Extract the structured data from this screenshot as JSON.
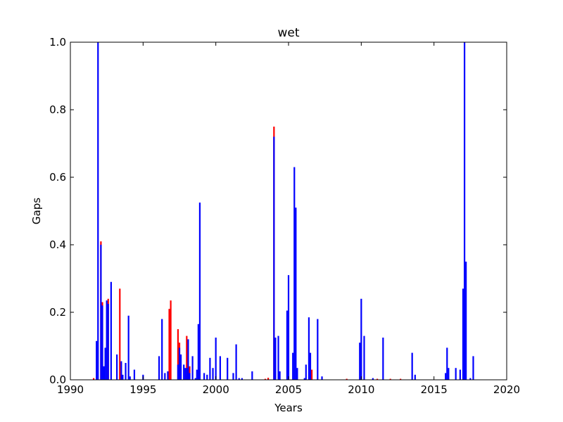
{
  "chart_data": {
    "type": "bar",
    "title": "wet",
    "xlabel": "Years",
    "ylabel": "Gaps",
    "xlim": [
      1990,
      2020
    ],
    "ylim": [
      0.0,
      1.0
    ],
    "xticks": [
      "1990",
      "1995",
      "2000",
      "2005",
      "2010",
      "2015",
      "2020"
    ],
    "yticks": [
      "0.0",
      "0.2",
      "0.4",
      "0.6",
      "0.8",
      "1.0"
    ],
    "grid": false,
    "colors": {
      "blue": "#0000ff",
      "red": "#ff0000"
    },
    "series": [
      {
        "color": "red",
        "points": [
          [
            1991.6,
            0.005
          ],
          [
            1992.1,
            0.41
          ],
          [
            1992.2,
            0.23
          ],
          [
            1992.6,
            0.24
          ],
          [
            1993.4,
            0.27
          ],
          [
            1993.5,
            0.05
          ],
          [
            1996.8,
            0.21
          ],
          [
            1996.9,
            0.235
          ],
          [
            1997.4,
            0.15
          ],
          [
            1997.5,
            0.11
          ],
          [
            1998.0,
            0.13
          ],
          [
            1998.2,
            0.04
          ],
          [
            2003.4,
            0.003
          ],
          [
            2003.6,
            0.006
          ],
          [
            2004.0,
            0.75
          ],
          [
            2006.6,
            0.03
          ],
          [
            2009.0,
            0.003
          ],
          [
            2011.1,
            0.003
          ],
          [
            2012.0,
            0.003
          ],
          [
            2012.7,
            0.003
          ],
          [
            2016.0,
            0.003
          ],
          [
            2016.8,
            0.003
          ]
        ]
      },
      {
        "color": "blue",
        "points": [
          [
            1991.8,
            0.115
          ],
          [
            1991.9,
            1.0
          ],
          [
            1992.1,
            0.4
          ],
          [
            1992.2,
            0.22
          ],
          [
            1992.3,
            0.04
          ],
          [
            1992.4,
            0.095
          ],
          [
            1992.5,
            0.235
          ],
          [
            1992.6,
            0.225
          ],
          [
            1992.8,
            0.29
          ],
          [
            1993.2,
            0.075
          ],
          [
            1993.5,
            0.055
          ],
          [
            1993.6,
            0.015
          ],
          [
            1993.8,
            0.05
          ],
          [
            1994.0,
            0.19
          ],
          [
            1994.1,
            0.01
          ],
          [
            1994.4,
            0.03
          ],
          [
            1995.0,
            0.015
          ],
          [
            1996.1,
            0.07
          ],
          [
            1996.3,
            0.18
          ],
          [
            1996.5,
            0.02
          ],
          [
            1996.7,
            0.025
          ],
          [
            1997.4,
            0.045
          ],
          [
            1997.5,
            0.095
          ],
          [
            1997.6,
            0.075
          ],
          [
            1997.8,
            0.045
          ],
          [
            1997.9,
            0.035
          ],
          [
            1998.0,
            0.035
          ],
          [
            1998.1,
            0.12
          ],
          [
            1998.2,
            0.02
          ],
          [
            1998.4,
            0.07
          ],
          [
            1998.6,
            0.005
          ],
          [
            1998.7,
            0.03
          ],
          [
            1998.8,
            0.165
          ],
          [
            1998.9,
            0.525
          ],
          [
            1999.2,
            0.02
          ],
          [
            1999.4,
            0.015
          ],
          [
            1999.6,
            0.065
          ],
          [
            1999.8,
            0.035
          ],
          [
            2000.0,
            0.125
          ],
          [
            2000.3,
            0.07
          ],
          [
            2000.8,
            0.065
          ],
          [
            2001.2,
            0.02
          ],
          [
            2001.4,
            0.105
          ],
          [
            2001.6,
            0.005
          ],
          [
            2001.8,
            0.005
          ],
          [
            2002.5,
            0.025
          ],
          [
            2004.0,
            0.72
          ],
          [
            2004.1,
            0.125
          ],
          [
            2004.3,
            0.13
          ],
          [
            2004.4,
            0.025
          ],
          [
            2004.9,
            0.205
          ],
          [
            2005.0,
            0.31
          ],
          [
            2005.3,
            0.08
          ],
          [
            2005.4,
            0.63
          ],
          [
            2005.5,
            0.51
          ],
          [
            2005.6,
            0.035
          ],
          [
            2006.1,
            0.005
          ],
          [
            2006.2,
            0.045
          ],
          [
            2006.4,
            0.185
          ],
          [
            2006.5,
            0.08
          ],
          [
            2007.0,
            0.18
          ],
          [
            2007.3,
            0.01
          ],
          [
            2009.9,
            0.11
          ],
          [
            2010.0,
            0.24
          ],
          [
            2010.2,
            0.13
          ],
          [
            2010.8,
            0.005
          ],
          [
            2011.5,
            0.125
          ],
          [
            2013.5,
            0.08
          ],
          [
            2013.7,
            0.015
          ],
          [
            2015.8,
            0.02
          ],
          [
            2015.9,
            0.095
          ],
          [
            2016.0,
            0.035
          ],
          [
            2016.5,
            0.035
          ],
          [
            2016.8,
            0.03
          ],
          [
            2017.0,
            0.27
          ],
          [
            2017.1,
            1.0
          ],
          [
            2017.2,
            0.35
          ],
          [
            2017.5,
            0.005
          ],
          [
            2017.7,
            0.07
          ]
        ]
      }
    ]
  }
}
